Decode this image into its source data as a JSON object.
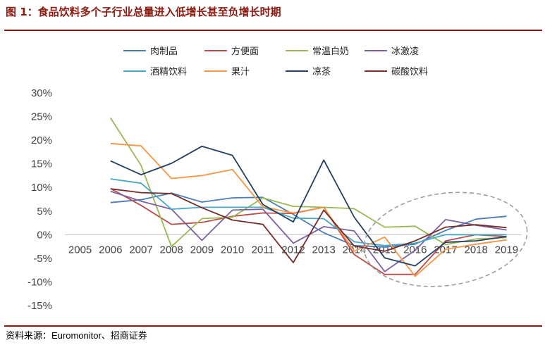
{
  "header": {
    "title": "图 1：食品饮料多个子行业总量进入低增长甚至负增长时期"
  },
  "footer": {
    "source": "资料来源：Euromonitor、招商证券"
  },
  "chart_data": {
    "type": "line",
    "title": "",
    "xlabel": "",
    "ylabel": "",
    "x": [
      "2005",
      "2006",
      "2007",
      "2008",
      "2009",
      "2010",
      "2011",
      "2012",
      "2013",
      "2014",
      "2015",
      "2016",
      "2017",
      "2018",
      "2019"
    ],
    "ylim": [
      -15,
      30
    ],
    "yticks": [
      30,
      25,
      20,
      15,
      10,
      5,
      0,
      -5,
      -10,
      -15
    ],
    "ytick_labels": [
      "30%",
      "25%",
      "20%",
      "15%",
      "10%",
      "5%",
      "0%",
      "-5%",
      "-10%",
      "-15%"
    ],
    "grid": false,
    "legend_position": "top",
    "series": [
      {
        "name": "肉制品",
        "color": "#4a7ebb",
        "values": [
          null,
          6.8,
          7.4,
          8.8,
          6.9,
          7.8,
          7.9,
          4.3,
          0.4,
          -2.3,
          -2.6,
          -2.0,
          0.9,
          3.3,
          3.9
        ]
      },
      {
        "name": "方便面",
        "color": "#be4b48",
        "values": [
          null,
          9.8,
          6.2,
          2.2,
          2.6,
          3.9,
          4.6,
          4.5,
          5.8,
          -4.2,
          -8.4,
          -8.4,
          -1.3,
          0.0,
          -0.4
        ]
      },
      {
        "name": "常温白奶",
        "color": "#98b954",
        "values": [
          null,
          24.7,
          14.7,
          -2.5,
          3.4,
          3.7,
          7.8,
          6.0,
          5.8,
          5.5,
          1.6,
          1.8,
          -2.1,
          -0.9,
          -0.6
        ]
      },
      {
        "name": "冰激凌",
        "color": "#7d60a0",
        "values": [
          null,
          9.2,
          7.1,
          5.4,
          -1.2,
          5.2,
          5.4,
          -1.8,
          1.7,
          0.8,
          -7.8,
          -3.3,
          3.2,
          2.0,
          1.0
        ]
      },
      {
        "name": "酒精饮料",
        "color": "#46aac5",
        "values": [
          null,
          11.8,
          10.9,
          5.4,
          5.8,
          5.8,
          5.8,
          3.5,
          3.4,
          -1.5,
          -2.3,
          -1.8,
          0.0,
          0.0,
          0.0
        ]
      },
      {
        "name": "果汁",
        "color": "#f69545",
        "values": [
          null,
          19.3,
          18.8,
          11.9,
          12.5,
          13.8,
          5.9,
          4.6,
          5.8,
          -3.5,
          -0.5,
          -8.8,
          -3.1,
          -2.0,
          -1.1
        ]
      },
      {
        "name": "凉茶",
        "color": "#243f60",
        "values": [
          null,
          15.6,
          12.7,
          15.1,
          18.7,
          16.8,
          6.4,
          2.7,
          15.8,
          3.7,
          -4.9,
          -6.6,
          -1.6,
          -1.3,
          -0.4
        ]
      },
      {
        "name": "碳酸饮料",
        "color": "#772c2a",
        "values": [
          null,
          9.7,
          8.9,
          8.7,
          5.7,
          3.1,
          2.2,
          -5.9,
          5.2,
          -2.4,
          -3.5,
          -1.3,
          1.6,
          2.1,
          1.5
        ]
      }
    ],
    "annotation": {
      "shape": "dashed-ellipse",
      "color": "#999999",
      "years": [
        "2015",
        "2016",
        "2017",
        "2018",
        "2019"
      ]
    }
  }
}
